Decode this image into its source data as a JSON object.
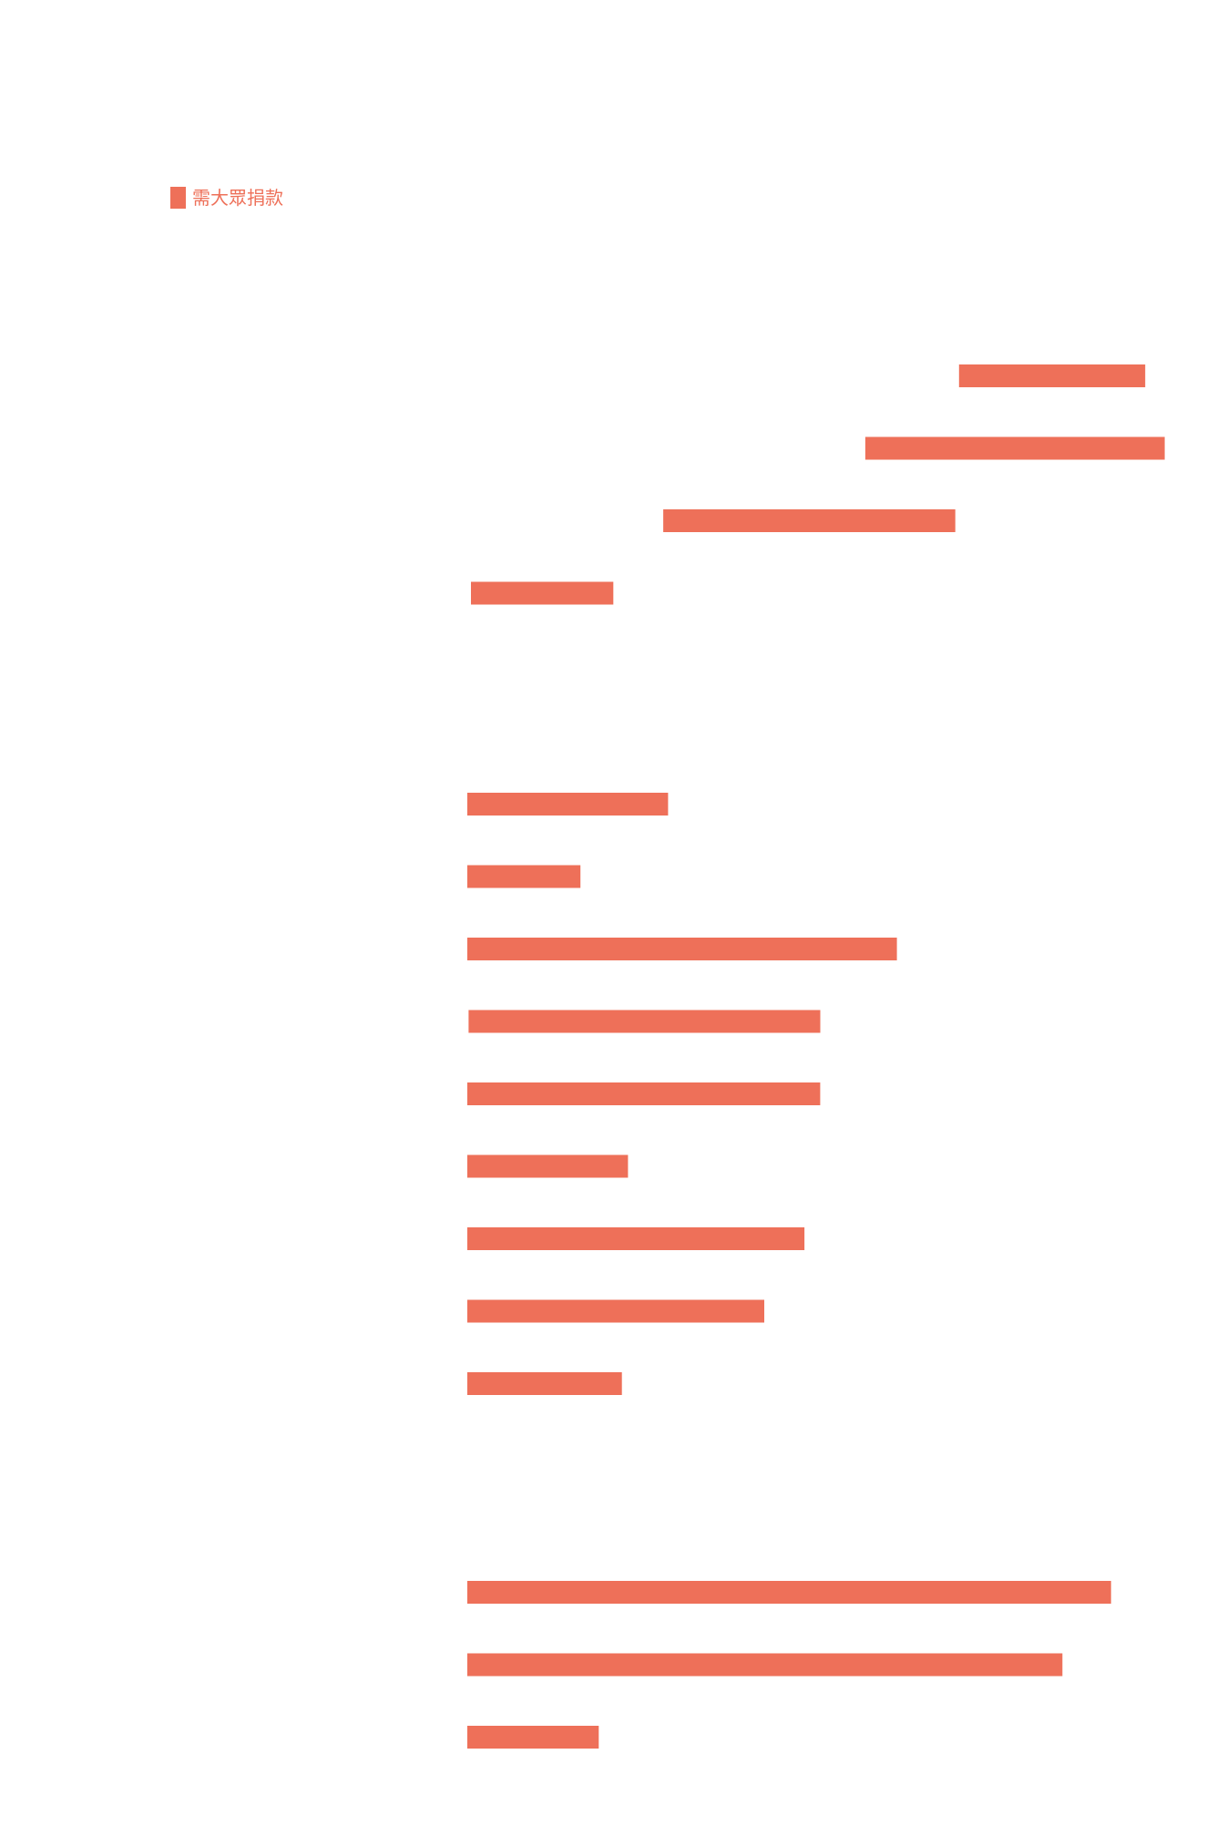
{
  "chart_data": {
    "type": "bar",
    "orientation": "horizontal",
    "layout": "floating-range",
    "series": [
      {
        "name": "需大眾捐款",
        "color": "#EE7059"
      }
    ],
    "groups": [
      {
        "bars": [
          {
            "start": 78.8,
            "end": 94.1
          },
          {
            "start": 71.1,
            "end": 95.7
          },
          {
            "start": 54.5,
            "end": 78.5
          },
          {
            "start": 38.7,
            "end": 50.4
          }
        ]
      },
      {
        "bars": [
          {
            "start": 38.4,
            "end": 54.9
          },
          {
            "start": 38.4,
            "end": 47.7
          },
          {
            "start": 38.4,
            "end": 73.7
          },
          {
            "start": 38.5,
            "end": 67.4
          },
          {
            "start": 38.4,
            "end": 67.4
          },
          {
            "start": 38.4,
            "end": 51.6
          },
          {
            "start": 38.4,
            "end": 66.1
          },
          {
            "start": 38.4,
            "end": 62.8
          },
          {
            "start": 38.4,
            "end": 51.1
          }
        ]
      },
      {
        "bars": [
          {
            "start": 38.4,
            "end": 91.3
          },
          {
            "start": 38.4,
            "end": 87.3
          },
          {
            "start": 38.4,
            "end": 49.2
          }
        ]
      }
    ],
    "xlim": [
      0,
      100
    ],
    "grid": false,
    "legend_position": "top-left"
  }
}
